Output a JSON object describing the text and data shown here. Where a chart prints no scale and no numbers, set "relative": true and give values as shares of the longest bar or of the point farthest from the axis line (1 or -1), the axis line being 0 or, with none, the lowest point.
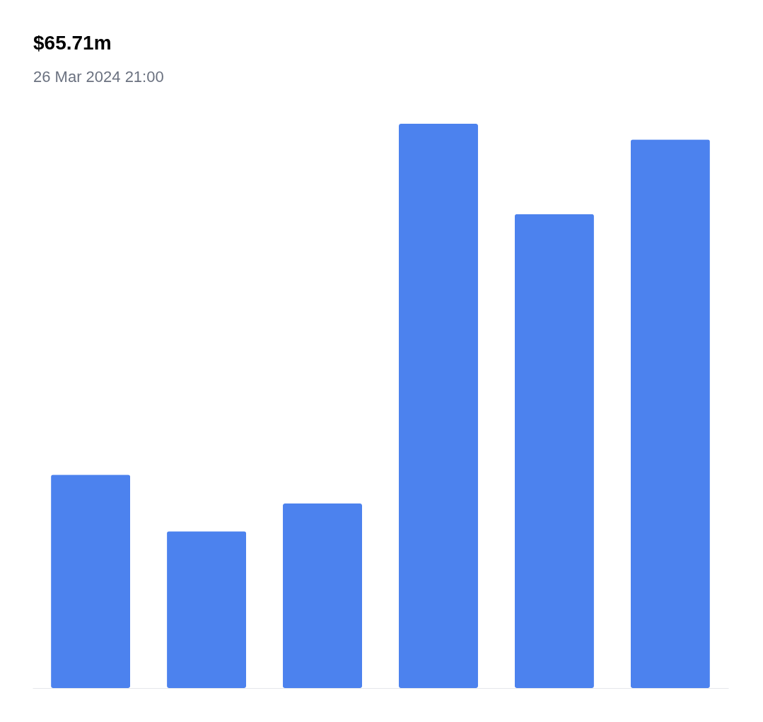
{
  "chart_data": {
    "type": "bar",
    "title": "$65.71m",
    "subtitle": "26 Mar 2024 21:00",
    "categories": [
      null,
      null,
      null,
      null,
      null,
      null
    ],
    "values": [
      0.378,
      0.278,
      0.327,
      1,
      0.84,
      0.972
    ],
    "color": "#4c82ee",
    "relative": true
  }
}
